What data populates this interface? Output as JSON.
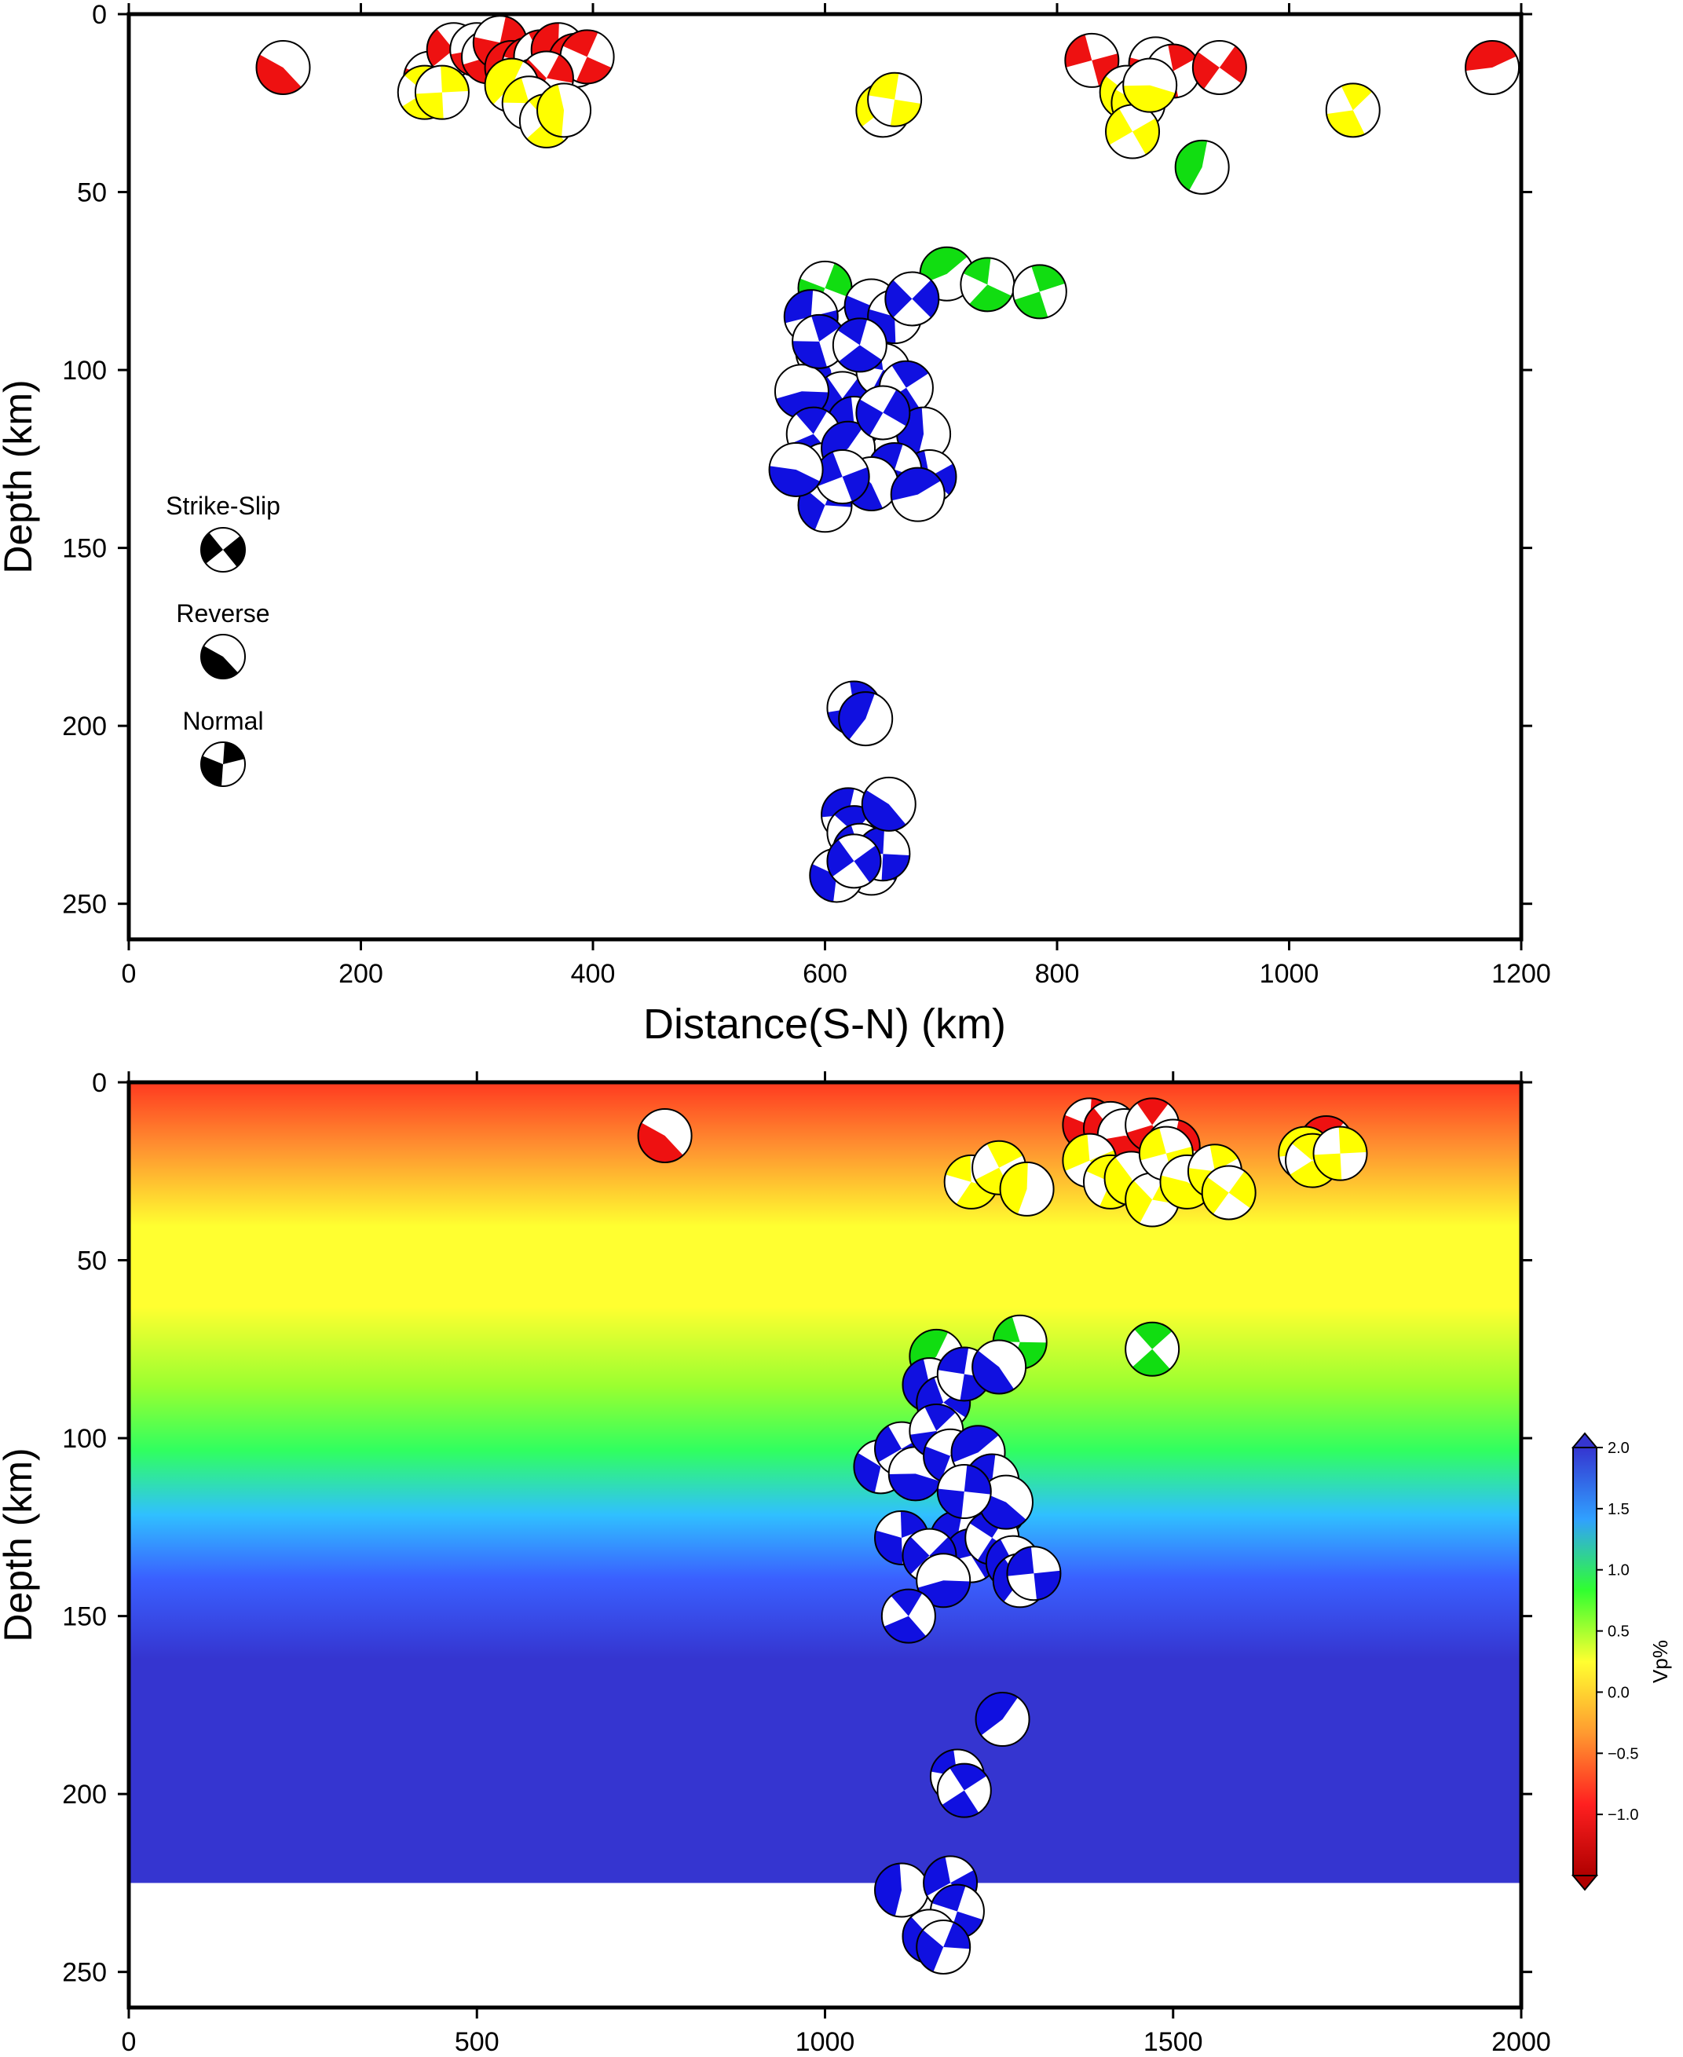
{
  "chart_data": [
    {
      "type": "scatter",
      "xlabel": "Distance(S-N) (km)",
      "ylabel": "Depth (km)",
      "xlim": [
        0,
        1200
      ],
      "ylim": [
        0,
        260
      ],
      "y_inverted": true,
      "xticks": [
        "0",
        "200",
        "400",
        "600",
        "800",
        "1000",
        "1200"
      ],
      "yticks": [
        "0",
        "50",
        "100",
        "150",
        "200",
        "250"
      ],
      "legend": {
        "placement": "left",
        "items": [
          {
            "label": "Strike-Slip",
            "mech": "strike-slip"
          },
          {
            "label": "Reverse",
            "mech": "reverse"
          },
          {
            "label": "Normal",
            "mech": "normal"
          }
        ]
      },
      "series": [
        {
          "color": "red",
          "points": [
            [
              133,
              15
            ],
            [
              260,
              18
            ],
            [
              280,
              10
            ],
            [
              300,
              10
            ],
            [
              310,
              12
            ],
            [
              320,
              8
            ],
            [
              330,
              15
            ],
            [
              345,
              14
            ],
            [
              355,
              12
            ],
            [
              370,
              10
            ],
            [
              385,
              13
            ],
            [
              395,
              12
            ],
            [
              350,
              20
            ],
            [
              360,
              18
            ],
            [
              830,
              13
            ],
            [
              885,
              14
            ],
            [
              900,
              16
            ],
            [
              940,
              15
            ],
            [
              1175,
              15
            ]
          ]
        },
        {
          "color": "yellow",
          "points": [
            [
              255,
              22
            ],
            [
              270,
              22
            ],
            [
              330,
              20
            ],
            [
              345,
              25
            ],
            [
              360,
              30
            ],
            [
              375,
              27
            ],
            [
              650,
              27
            ],
            [
              660,
              24
            ],
            [
              860,
              22
            ],
            [
              870,
              25
            ],
            [
              865,
              33
            ],
            [
              880,
              20
            ],
            [
              1055,
              27
            ]
          ]
        },
        {
          "color": "green",
          "points": [
            [
              600,
              77
            ],
            [
              705,
              73
            ],
            [
              740,
              76
            ],
            [
              785,
              78
            ],
            [
              925,
              43
            ]
          ]
        },
        {
          "color": "blue",
          "points": [
            [
              588,
              85
            ],
            [
              598,
              95
            ],
            [
              605,
              100
            ],
            [
              615,
              108
            ],
            [
              625,
              115
            ],
            [
              640,
              82
            ],
            [
              660,
              85
            ],
            [
              675,
              80
            ],
            [
              580,
              106
            ],
            [
              590,
              118
            ],
            [
              600,
              128
            ],
            [
              620,
              122
            ],
            [
              650,
              100
            ],
            [
              670,
              105
            ],
            [
              685,
              118
            ],
            [
              690,
              130
            ],
            [
              660,
              128
            ],
            [
              640,
              132
            ],
            [
              600,
              138
            ],
            [
              615,
              130
            ],
            [
              575,
              128
            ],
            [
              595,
              92
            ],
            [
              650,
              112
            ],
            [
              680,
              135
            ],
            [
              630,
              93
            ],
            [
              625,
              195
            ],
            [
              635,
              198
            ],
            [
              620,
              225
            ],
            [
              625,
              230
            ],
            [
              630,
              235
            ],
            [
              640,
              240
            ],
            [
              650,
              236
            ],
            [
              655,
              222
            ],
            [
              610,
              242
            ],
            [
              625,
              238
            ]
          ]
        }
      ]
    },
    {
      "type": "heatmap",
      "ylabel": "Depth (km)",
      "xlim": [
        0,
        2000
      ],
      "ylim": [
        0,
        260
      ],
      "y_inverted": true,
      "xticks": [
        "0",
        "500",
        "1000",
        "1500",
        "2000"
      ],
      "yticks": [
        "0",
        "50",
        "100",
        "150",
        "200",
        "250"
      ],
      "colorbar": {
        "label": "Vp%",
        "range": [
          -1.5,
          2.0
        ],
        "ticks": [
          "-1.0",
          "-0.5",
          "0.0",
          "0.5",
          "1.0",
          "1.5",
          "2.0"
        ],
        "colors": [
          "#b00000",
          "#ff2020",
          "#ff9a30",
          "#ffff30",
          "#30ff30",
          "#30a0ff",
          "#3535d0"
        ]
      },
      "model_extent_depth_km": 225,
      "series": [
        {
          "color": "red",
          "points": [
            [
              770,
              15
            ],
            [
              1380,
              12
            ],
            [
              1410,
              13
            ],
            [
              1430,
              15
            ],
            [
              1470,
              12
            ],
            [
              1500,
              18
            ],
            [
              1720,
              17
            ]
          ]
        },
        {
          "color": "yellow",
          "points": [
            [
              1210,
              28
            ],
            [
              1250,
              24
            ],
            [
              1290,
              30
            ],
            [
              1380,
              22
            ],
            [
              1410,
              28
            ],
            [
              1440,
              27
            ],
            [
              1470,
              33
            ],
            [
              1490,
              20
            ],
            [
              1520,
              28
            ],
            [
              1560,
              25
            ],
            [
              1580,
              31
            ],
            [
              1690,
              20
            ],
            [
              1700,
              22
            ],
            [
              1740,
              20
            ]
          ]
        },
        {
          "color": "green",
          "points": [
            [
              1160,
              77
            ],
            [
              1280,
              73
            ],
            [
              1470,
              75
            ]
          ]
        },
        {
          "color": "blue",
          "points": [
            [
              1150,
              85
            ],
            [
              1170,
              90
            ],
            [
              1200,
              82
            ],
            [
              1250,
              80
            ],
            [
              1080,
              108
            ],
            [
              1110,
              103
            ],
            [
              1130,
              110
            ],
            [
              1160,
              98
            ],
            [
              1180,
              105
            ],
            [
              1220,
              104
            ],
            [
              1240,
              112
            ],
            [
              1250,
              120
            ],
            [
              1190,
              128
            ],
            [
              1210,
              133
            ],
            [
              1240,
              128
            ],
            [
              1270,
              135
            ],
            [
              1280,
              140
            ],
            [
              1300,
              138
            ],
            [
              1260,
              118
            ],
            [
              1110,
              128
            ],
            [
              1150,
              133
            ],
            [
              1170,
              140
            ],
            [
              1120,
              150
            ],
            [
              1200,
              115
            ],
            [
              1255,
              179
            ],
            [
              1190,
              195
            ],
            [
              1200,
              199
            ],
            [
              1110,
              227
            ],
            [
              1180,
              225
            ],
            [
              1190,
              233
            ],
            [
              1150,
              240
            ],
            [
              1170,
              243
            ]
          ]
        }
      ]
    }
  ]
}
